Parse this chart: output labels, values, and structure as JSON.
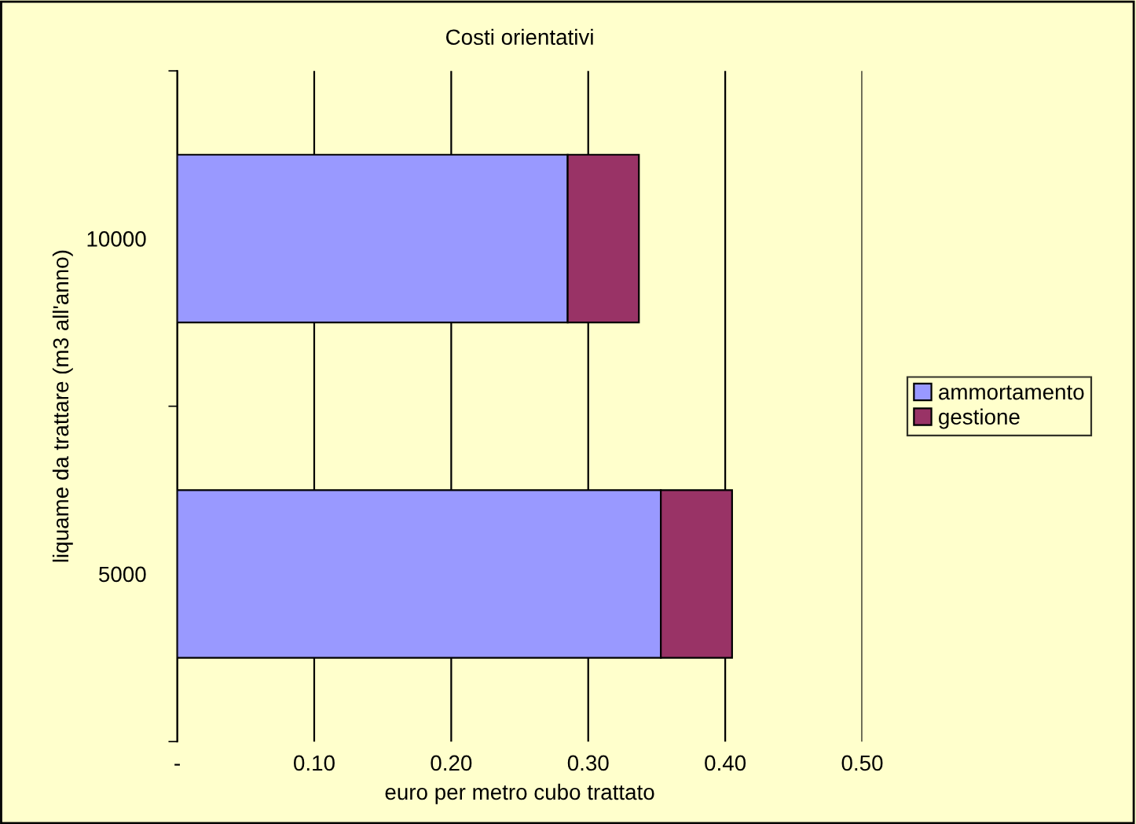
{
  "chart_data": {
    "type": "bar",
    "orientation": "horizontal",
    "stacked": true,
    "title": "Costi orientativi",
    "xlabel": "euro per metro cubo trattato",
    "ylabel": "liquame da trattare (m3 all'anno)",
    "categories": [
      "10000",
      "5000"
    ],
    "series": [
      {
        "name": "ammortamento",
        "color": "#9999ff",
        "values": [
          0.285,
          0.353
        ]
      },
      {
        "name": "gestione",
        "color": "#993366",
        "values": [
          0.052,
          0.052
        ]
      }
    ],
    "xlim": [
      0,
      0.5
    ],
    "xticks": [
      {
        "value": 0,
        "label": "-"
      },
      {
        "value": 0.1,
        "label": "0.10"
      },
      {
        "value": 0.2,
        "label": "0.20"
      },
      {
        "value": 0.3,
        "label": "0.30"
      },
      {
        "value": 0.4,
        "label": "0.40"
      },
      {
        "value": 0.5,
        "label": "0.50"
      }
    ],
    "grid": "x",
    "legend": "right"
  }
}
